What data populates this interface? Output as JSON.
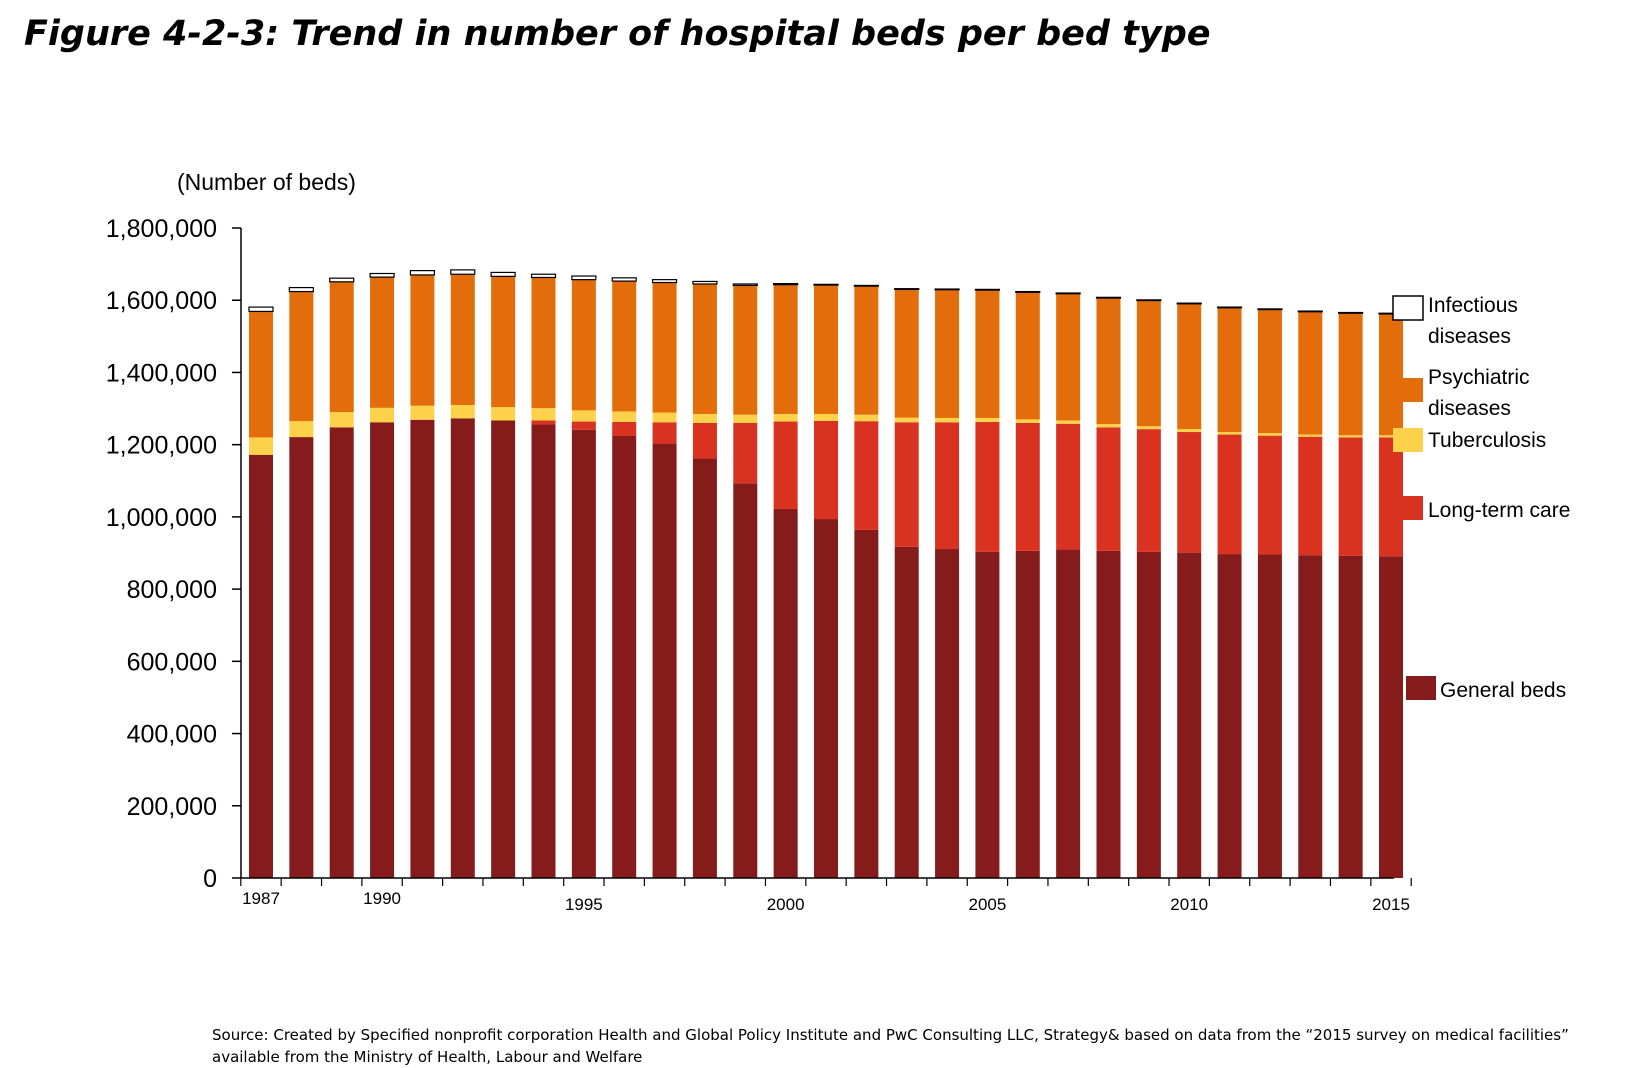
{
  "title": "Figure 4-2-3: Trend in number of hospital beds per bed type",
  "source": {
    "line1": "Source: Created by Specified nonprofit corporation Health and Global Policy Institute and PwC Consulting LLC, Strategy& based on data from the “2015 survey on medical facilities”",
    "line2": "available from the Ministry of Health, Labour and Welfare"
  },
  "chart_data": {
    "type": "bar",
    "stacked": true,
    "ylabel": "(Number of beds)",
    "ylim": [
      0,
      1800000
    ],
    "yticks": [
      0,
      200000,
      400000,
      600000,
      800000,
      1000000,
      1200000,
      1400000,
      1600000,
      1800000
    ],
    "ytick_labels": [
      "0",
      "200,000",
      "400,000",
      "600,000",
      "800,000",
      "1,000,000",
      "1,200,000",
      "1,400,000",
      "1,600,000",
      "1,800,000"
    ],
    "categories": [
      1987,
      1988,
      1989,
      1990,
      1991,
      1992,
      1993,
      1994,
      1995,
      1996,
      1997,
      1998,
      1999,
      2000,
      2001,
      2002,
      2003,
      2004,
      2005,
      2006,
      2007,
      2008,
      2009,
      2010,
      2011,
      2012,
      2013,
      2014,
      2015
    ],
    "x_tick_labels": [
      {
        "year": 1987,
        "label": "1987"
      },
      {
        "year": 1990,
        "label": "1990"
      },
      {
        "year": 1995,
        "label": "1995"
      },
      {
        "year": 2000,
        "label": "2000"
      },
      {
        "year": 2005,
        "label": "2005"
      },
      {
        "year": 2010,
        "label": "2010"
      },
      {
        "year": 2015,
        "label": "2015"
      }
    ],
    "series": [
      {
        "name": "General beds",
        "color": "#851b1b",
        "values": [
          1172000,
          1221000,
          1248000,
          1262000,
          1269000,
          1273000,
          1267000,
          1256000,
          1241000,
          1224000,
          1203000,
          1162000,
          1093000,
          1022000,
          994000,
          964000,
          917000,
          911000,
          903000,
          906000,
          910000,
          906000,
          903000,
          901000,
          897000,
          896000,
          894000,
          892000,
          891000
        ]
      },
      {
        "name": "Long-term care",
        "color": "#d93221",
        "values": [
          0,
          0,
          0,
          0,
          0,
          0,
          0,
          11000,
          23000,
          39000,
          59000,
          98000,
          167000,
          242000,
          272000,
          301000,
          345000,
          351000,
          360000,
          354000,
          348000,
          342000,
          340000,
          334000,
          331000,
          329000,
          328000,
          328000,
          329000
        ]
      },
      {
        "name": "Tuberculosis",
        "color": "#fdd24a",
        "values": [
          48000,
          44000,
          42000,
          40000,
          39000,
          37000,
          37000,
          34000,
          31000,
          29000,
          27000,
          25000,
          23000,
          21000,
          19000,
          18000,
          13000,
          12000,
          11000,
          10000,
          9000,
          9000,
          8000,
          8000,
          7000,
          7000,
          6000,
          6000,
          6000
        ]
      },
      {
        "name": "Psychiatric diseases",
        "color": "#e36d0a",
        "values": [
          349000,
          359000,
          361000,
          362000,
          362000,
          362000,
          362000,
          362000,
          362000,
          361000,
          360000,
          360000,
          358000,
          358000,
          357000,
          356000,
          355000,
          355000,
          354000,
          352000,
          351000,
          349000,
          348000,
          347000,
          344000,
          342000,
          340000,
          338000,
          336000
        ]
      },
      {
        "name": "Infectious diseases",
        "color": "#ffffff",
        "values": [
          12000,
          11000,
          10000,
          10000,
          12000,
          12000,
          11000,
          9000,
          10000,
          9000,
          8000,
          7000,
          4000,
          3000,
          2000,
          2000,
          2000,
          2000,
          2000,
          2000,
          2000,
          2000,
          2000,
          2000,
          2000,
          2000,
          2000,
          2000,
          2000
        ]
      }
    ],
    "legend": {
      "placement": "right",
      "entries": [
        {
          "series": "Infectious diseases",
          "line1": "Infectious",
          "line2": "diseases"
        },
        {
          "series": "Psychiatric diseases",
          "line1": "Psychiatric",
          "line2": "diseases"
        },
        {
          "series": "Tuberculosis",
          "line1": "Tuberculosis",
          "line2": ""
        },
        {
          "series": "Long-term care",
          "line1": "Long-term care",
          "line2": ""
        },
        {
          "series": "General beds",
          "line1": "General beds",
          "line2": ""
        }
      ]
    },
    "grid": false
  }
}
